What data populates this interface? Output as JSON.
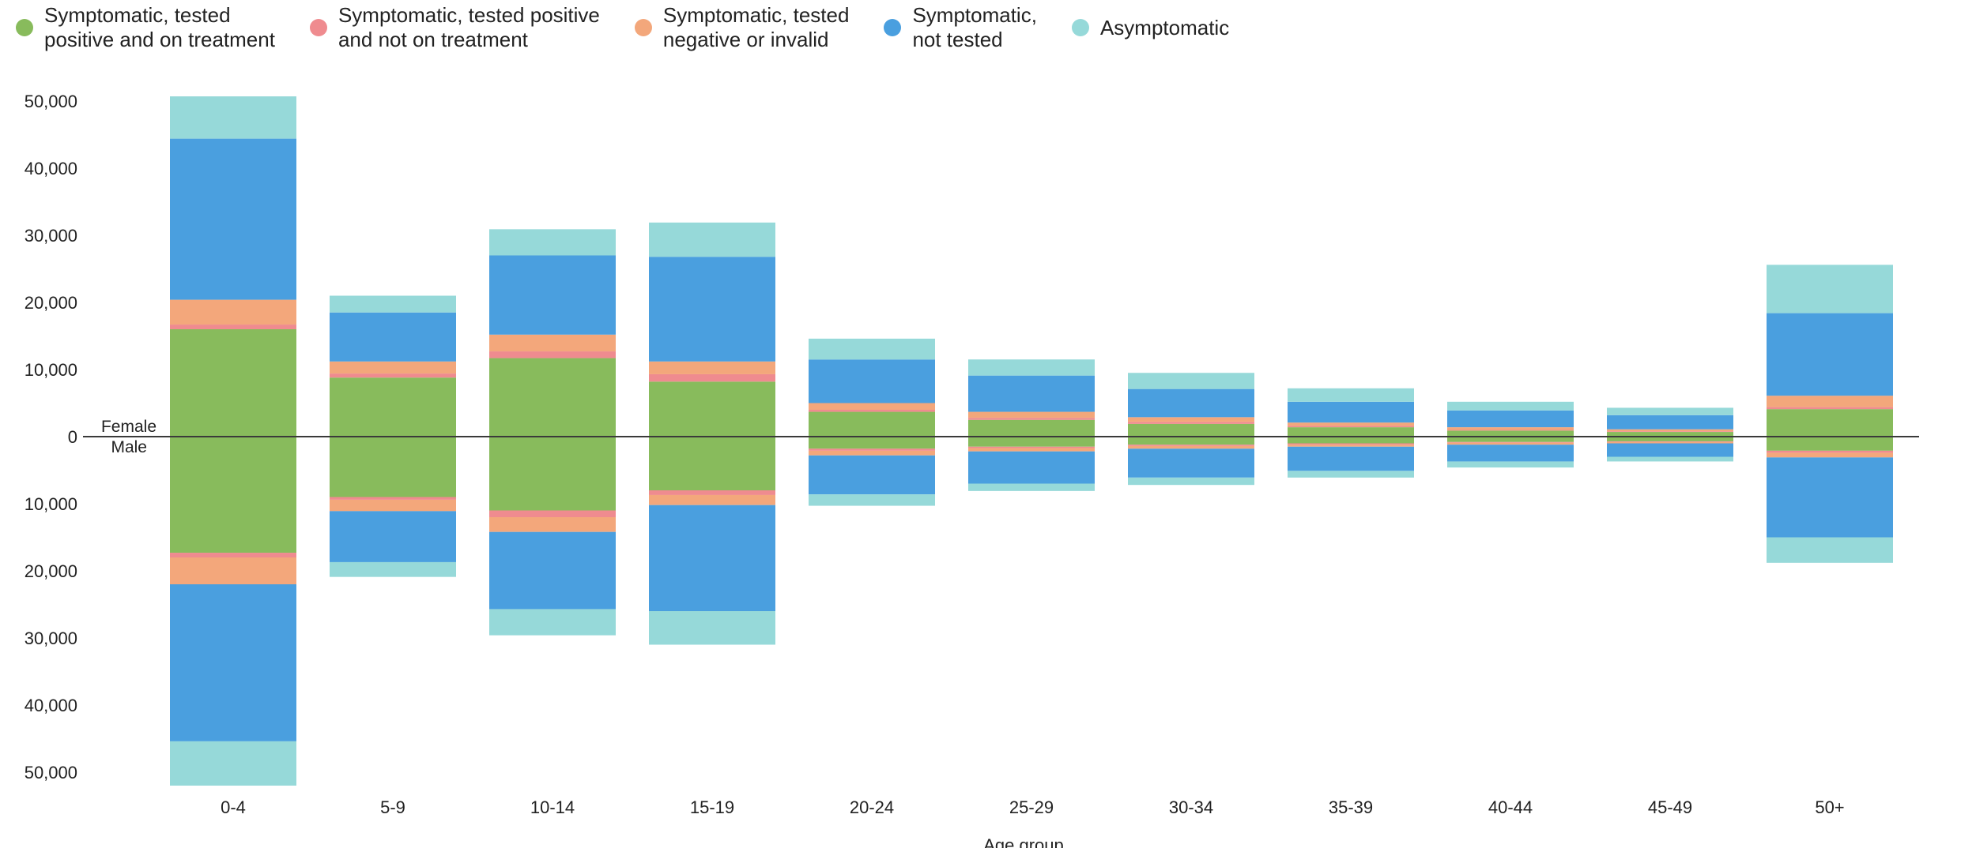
{
  "legend": [
    {
      "lines": [
        "Symptomatic, tested",
        "positive and on treatment"
      ],
      "color": "#88bb5c"
    },
    {
      "lines": [
        "Symptomatic, tested positive",
        "and not on treatment"
      ],
      "color": "#ef8b8f"
    },
    {
      "lines": [
        "Symptomatic, tested",
        "negative or invalid"
      ],
      "color": "#f3a77b"
    },
    {
      "lines": [
        "Symptomatic,",
        "not tested"
      ],
      "color": "#4a9fdf"
    },
    {
      "lines": [
        "Asymptomatic"
      ],
      "color": "#96d9d9"
    }
  ],
  "chart_data": {
    "type": "bar",
    "subtype": "diverging-stacked",
    "xlabel": "Age group",
    "ylabel": "",
    "ylim": [
      -52000,
      51000
    ],
    "yticks": [
      50000,
      40000,
      30000,
      20000,
      10000,
      0,
      -10000,
      -20000,
      -30000,
      -40000,
      -50000
    ],
    "ytick_labels": [
      "50,000",
      "40,000",
      "30,000",
      "20,000",
      "10,000",
      "0",
      "10,000",
      "20,000",
      "30,000",
      "40,000",
      "50,000"
    ],
    "upper_label": "Female",
    "lower_label": "Male",
    "categories": [
      "0-4",
      "5-9",
      "10-14",
      "15-19",
      "20-24",
      "25-29",
      "30-34",
      "35-39",
      "40-44",
      "45-49",
      "50+"
    ],
    "series": [
      {
        "name": "Symptomatic, tested positive and on treatment",
        "female": [
          16000,
          8800,
          11700,
          8200,
          3700,
          2500,
          1900,
          1400,
          900,
          700,
          4100
        ],
        "male": [
          17300,
          9000,
          11000,
          8000,
          1800,
          1500,
          1200,
          1000,
          800,
          700,
          2100
        ]
      },
      {
        "name": "Symptomatic, tested positive and not on treatment",
        "female": [
          700,
          600,
          1000,
          1100,
          300,
          300,
          300,
          200,
          100,
          100,
          300
        ],
        "male": [
          700,
          400,
          1000,
          700,
          300,
          200,
          200,
          200,
          100,
          100,
          300
        ]
      },
      {
        "name": "Symptomatic, tested negative or invalid",
        "female": [
          3700,
          1800,
          2500,
          1900,
          1000,
          900,
          700,
          500,
          400,
          300,
          1700
        ],
        "male": [
          4000,
          1700,
          2200,
          1500,
          700,
          500,
          400,
          300,
          300,
          200,
          700
        ]
      },
      {
        "name": "Symptomatic, not tested",
        "female": [
          24000,
          7300,
          11800,
          15600,
          6500,
          5400,
          4200,
          3100,
          2500,
          2100,
          12300
        ],
        "male": [
          23400,
          7600,
          11500,
          15800,
          5800,
          4800,
          4300,
          3600,
          2500,
          2000,
          11900
        ]
      },
      {
        "name": "Asymptomatic",
        "female": [
          6300,
          2500,
          3900,
          5100,
          3100,
          2400,
          2400,
          2000,
          1300,
          1100,
          7200
        ],
        "male": [
          6600,
          2200,
          3900,
          5000,
          1700,
          1100,
          1100,
          1000,
          900,
          700,
          3800
        ]
      }
    ],
    "grid": false,
    "legend_position": "top-left"
  }
}
